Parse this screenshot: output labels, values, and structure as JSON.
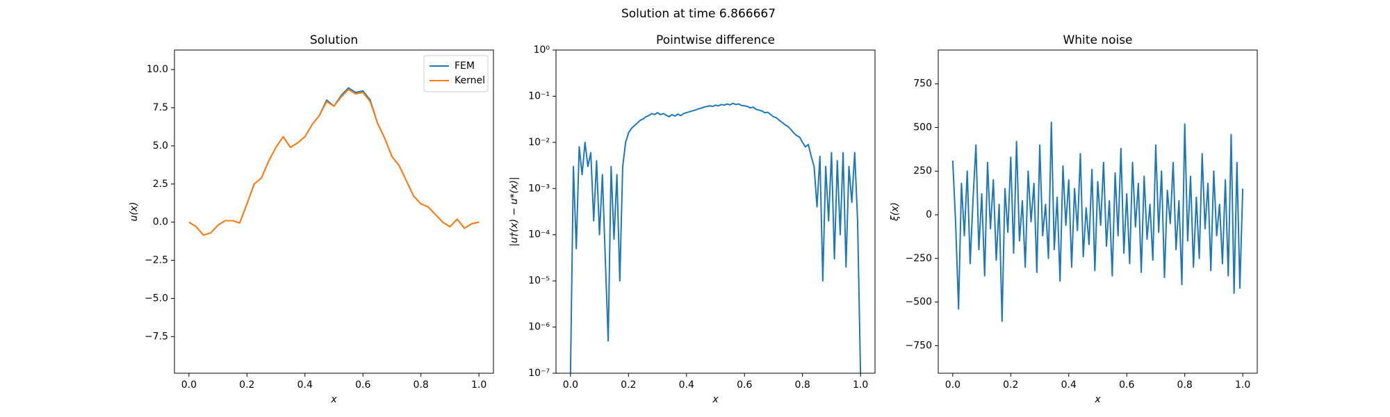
{
  "suptitle": "Solution at time 6.866667",
  "chart_data": [
    {
      "type": "line",
      "title": "Solution",
      "xlabel": "x",
      "ylabel": "u(x)",
      "xlim": [
        -0.05,
        1.05
      ],
      "ylim": [
        -9.9,
        11.28
      ],
      "xticks": [
        {
          "value": 0,
          "label": "0.0"
        },
        0.2,
        0.4,
        0.6,
        0.8,
        {
          "value": 1,
          "label": "1.0"
        }
      ],
      "yticks": [
        {
          "value": -7.5,
          "label": "−7.5"
        },
        {
          "value": -5,
          "label": "−5.0"
        },
        {
          "value": -2.5,
          "label": "−2.5"
        },
        {
          "value": 0,
          "label": "0.0"
        },
        2.5,
        {
          "value": 5,
          "label": "5.0"
        },
        7.5,
        {
          "value": 10,
          "label": "10.0"
        }
      ],
      "legend": "upper right",
      "x": [
        0,
        0.025,
        0.05,
        0.075,
        0.1,
        0.125,
        0.15,
        0.175,
        0.2,
        0.225,
        0.25,
        0.275,
        0.3,
        0.325,
        0.35,
        0.375,
        0.4,
        0.425,
        0.45,
        0.475,
        0.5,
        0.525,
        0.55,
        0.575,
        0.6,
        0.625,
        0.65,
        0.675,
        0.7,
        0.725,
        0.75,
        0.775,
        0.8,
        0.825,
        0.85,
        0.875,
        0.9,
        0.925,
        0.95,
        0.975,
        1.0
      ],
      "series": [
        {
          "name": "FEM",
          "color": "#1f77b4",
          "values": [
            0,
            -0.3,
            -0.85,
            -0.7,
            -0.2,
            0.1,
            0.1,
            -0.05,
            1.2,
            2.5,
            2.9,
            4.0,
            4.9,
            5.6,
            4.9,
            5.2,
            5.6,
            6.4,
            7.0,
            8.0,
            7.6,
            8.3,
            8.8,
            8.5,
            8.6,
            8.0,
            6.5,
            5.5,
            4.3,
            3.7,
            2.7,
            1.7,
            1.2,
            1.0,
            0.5,
            0.0,
            -0.3,
            0.2,
            -0.4,
            -0.1,
            0.0
          ]
        },
        {
          "name": "Kernel",
          "color": "#ff7f0e",
          "values": [
            0,
            -0.3,
            -0.85,
            -0.7,
            -0.2,
            0.1,
            0.1,
            -0.05,
            1.2,
            2.5,
            2.9,
            4.0,
            4.9,
            5.6,
            4.9,
            5.2,
            5.6,
            6.4,
            7.0,
            7.9,
            7.6,
            8.2,
            8.7,
            8.4,
            8.5,
            7.9,
            6.5,
            5.5,
            4.3,
            3.7,
            2.7,
            1.7,
            1.2,
            1.0,
            0.5,
            0.0,
            -0.3,
            0.2,
            -0.4,
            -0.1,
            0.0
          ]
        }
      ]
    },
    {
      "type": "line",
      "title": "Pointwise difference",
      "xlabel": "x",
      "ylabel": "|u†(x) − u*(x)|",
      "yscale": "log",
      "xlim": [
        -0.05,
        1.05
      ],
      "ylim": [
        1e-07,
        1
      ],
      "xticks": [
        {
          "value": 0,
          "label": "0.0"
        },
        0.2,
        0.4,
        0.6,
        0.8,
        {
          "value": 1,
          "label": "1.0"
        }
      ],
      "yticks": [
        {
          "value": 1e-07,
          "label": "10⁻⁷"
        },
        {
          "value": 1e-06,
          "label": "10⁻⁶"
        },
        {
          "value": 1e-05,
          "label": "10⁻⁵"
        },
        {
          "value": 0.0001,
          "label": "10⁻⁴"
        },
        {
          "value": 0.001,
          "label": "10⁻³"
        },
        {
          "value": 0.01,
          "label": "10⁻²"
        },
        {
          "value": 0.1,
          "label": "10⁻¹"
        },
        {
          "value": 1,
          "label": "10⁰"
        }
      ],
      "x": [
        0,
        0.01,
        0.02,
        0.03,
        0.04,
        0.05,
        0.06,
        0.07,
        0.08,
        0.09,
        0.1,
        0.11,
        0.12,
        0.13,
        0.14,
        0.15,
        0.16,
        0.17,
        0.18,
        0.19,
        0.2,
        0.21,
        0.22,
        0.23,
        0.24,
        0.25,
        0.26,
        0.27,
        0.28,
        0.29,
        0.3,
        0.31,
        0.32,
        0.33,
        0.34,
        0.35,
        0.36,
        0.37,
        0.38,
        0.39,
        0.4,
        0.41,
        0.42,
        0.43,
        0.44,
        0.45,
        0.46,
        0.47,
        0.48,
        0.49,
        0.5,
        0.51,
        0.52,
        0.53,
        0.54,
        0.55,
        0.56,
        0.57,
        0.58,
        0.59,
        0.6,
        0.61,
        0.62,
        0.63,
        0.64,
        0.65,
        0.66,
        0.67,
        0.68,
        0.69,
        0.7,
        0.71,
        0.72,
        0.73,
        0.74,
        0.75,
        0.76,
        0.77,
        0.78,
        0.79,
        0.8,
        0.81,
        0.82,
        0.83,
        0.84,
        0.85,
        0.86,
        0.87,
        0.88,
        0.89,
        0.9,
        0.91,
        0.92,
        0.93,
        0.94,
        0.95,
        0.96,
        0.97,
        0.98,
        0.99,
        1.0
      ],
      "series": [
        {
          "color": "#1f77b4",
          "values": [
            1e-07,
            0.003,
            5e-05,
            0.008,
            0.002,
            0.01,
            0.003,
            0.006,
            0.0002,
            0.004,
            0.0001,
            0.002,
            3e-05,
            5e-07,
            0.003,
            8e-05,
            0.002,
            1e-05,
            0.003,
            0.01,
            0.016,
            0.02,
            0.023,
            0.026,
            0.03,
            0.032,
            0.036,
            0.038,
            0.042,
            0.04,
            0.044,
            0.04,
            0.042,
            0.039,
            0.036,
            0.04,
            0.037,
            0.041,
            0.038,
            0.042,
            0.044,
            0.046,
            0.048,
            0.05,
            0.053,
            0.055,
            0.058,
            0.06,
            0.062,
            0.06,
            0.064,
            0.062,
            0.066,
            0.064,
            0.068,
            0.065,
            0.07,
            0.066,
            0.068,
            0.063,
            0.062,
            0.06,
            0.056,
            0.058,
            0.052,
            0.05,
            0.048,
            0.044,
            0.045,
            0.04,
            0.036,
            0.034,
            0.03,
            0.027,
            0.024,
            0.022,
            0.019,
            0.016,
            0.014,
            0.013,
            0.01,
            0.008,
            0.009,
            0.005,
            0.003,
            0.0004,
            0.005,
            1e-05,
            0.003,
            0.0002,
            0.006,
            3e-05,
            0.004,
            0.0001,
            0.006,
            2e-05,
            0.003,
            0.0005,
            0.006,
            0.0002,
            1e-07
          ]
        }
      ]
    },
    {
      "type": "line",
      "title": "White noise",
      "xlabel": "x",
      "ylabel": "ξ(x)",
      "xlim": [
        -0.05,
        1.05
      ],
      "ylim": [
        -908,
        944
      ],
      "xticks": [
        {
          "value": 0,
          "label": "0.0"
        },
        0.2,
        0.4,
        0.6,
        0.8,
        {
          "value": 1,
          "label": "1.0"
        }
      ],
      "yticks": [
        {
          "value": -750,
          "label": "−750"
        },
        {
          "value": -500,
          "label": "−500"
        },
        {
          "value": -250,
          "label": "−250"
        },
        0,
        250,
        500,
        750
      ],
      "x": [
        0,
        0.01,
        0.02,
        0.03,
        0.04,
        0.05,
        0.06,
        0.07,
        0.08,
        0.09,
        0.1,
        0.11,
        0.12,
        0.13,
        0.14,
        0.15,
        0.16,
        0.17,
        0.18,
        0.19,
        0.2,
        0.21,
        0.22,
        0.23,
        0.24,
        0.25,
        0.26,
        0.27,
        0.28,
        0.29,
        0.3,
        0.31,
        0.32,
        0.33,
        0.34,
        0.35,
        0.36,
        0.37,
        0.38,
        0.39,
        0.4,
        0.41,
        0.42,
        0.43,
        0.44,
        0.45,
        0.46,
        0.47,
        0.48,
        0.49,
        0.5,
        0.51,
        0.52,
        0.53,
        0.54,
        0.55,
        0.56,
        0.57,
        0.58,
        0.59,
        0.6,
        0.61,
        0.62,
        0.63,
        0.64,
        0.65,
        0.66,
        0.67,
        0.68,
        0.69,
        0.7,
        0.71,
        0.72,
        0.73,
        0.74,
        0.75,
        0.76,
        0.77,
        0.78,
        0.79,
        0.8,
        0.81,
        0.82,
        0.83,
        0.84,
        0.85,
        0.86,
        0.87,
        0.88,
        0.89,
        0.9,
        0.91,
        0.92,
        0.93,
        0.94,
        0.95,
        0.96,
        0.97,
        0.98,
        0.99,
        1.0
      ],
      "series": [
        {
          "color": "#1f77b4",
          "values": [
            310,
            -50,
            -540,
            180,
            -120,
            250,
            -280,
            90,
            400,
            -200,
            120,
            -350,
            300,
            -80,
            200,
            -260,
            60,
            -610,
            150,
            -100,
            330,
            -220,
            420,
            -150,
            80,
            -300,
            250,
            -40,
            180,
            -330,
            400,
            -120,
            60,
            -250,
            530,
            -200,
            100,
            -380,
            280,
            -60,
            200,
            -300,
            150,
            -90,
            350,
            -240,
            40,
            -170,
            260,
            -320,
            190,
            -60,
            300,
            -180,
            80,
            -350,
            240,
            -120,
            380,
            -220,
            120,
            -280,
            300,
            -70,
            180,
            -330,
            220,
            -140,
            60,
            -260,
            400,
            -100,
            250,
            -360,
            140,
            -50,
            300,
            -200,
            80,
            -400,
            520,
            -150,
            220,
            -300,
            100,
            -250,
            350,
            -80,
            180,
            -320,
            250,
            -120,
            60,
            -280,
            200,
            -350,
            460,
            -450,
            300,
            -420,
            150
          ]
        }
      ]
    }
  ]
}
